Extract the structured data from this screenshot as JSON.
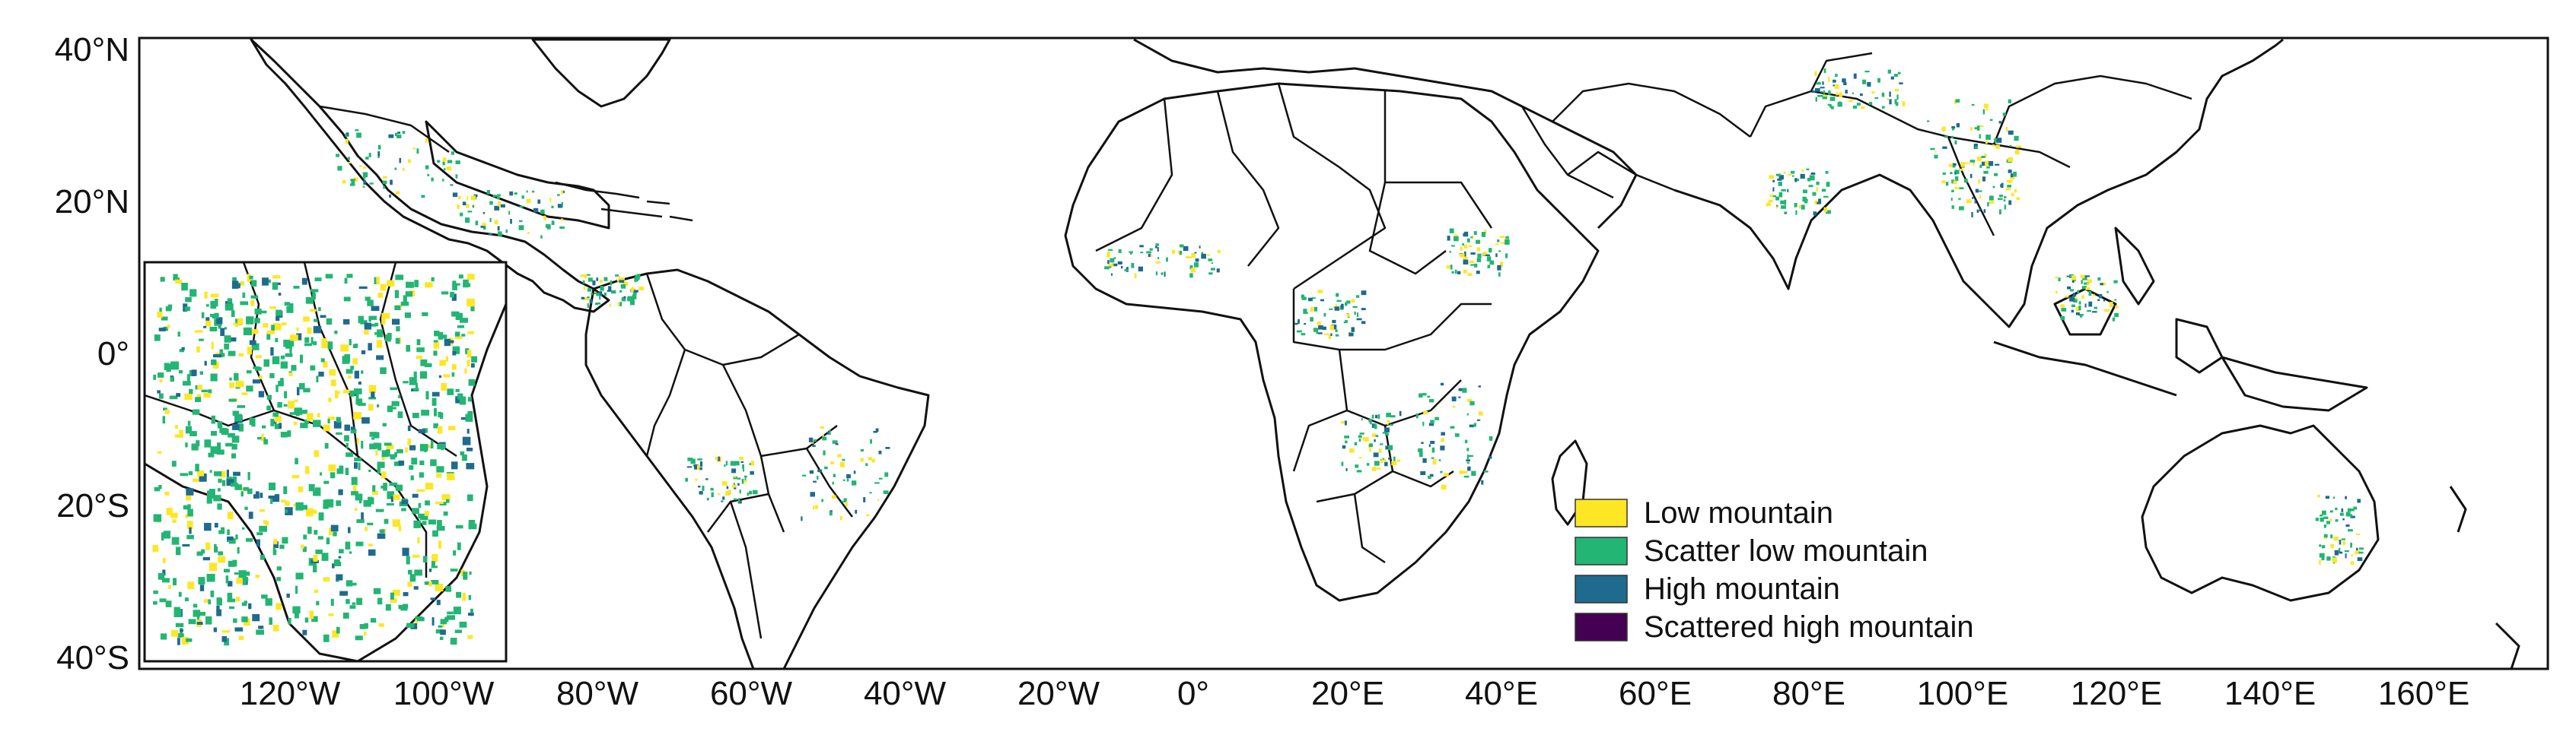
{
  "map": {
    "lat_labels": [
      "40°N",
      "20°N",
      "0°",
      "20°S",
      "40°S"
    ],
    "lon_labels": [
      "120°W",
      "100°W",
      "80°W",
      "60°W",
      "40°W",
      "20°W",
      "0°",
      "20°E",
      "40°E",
      "60°E",
      "80°E",
      "100°E",
      "120°E",
      "140°E",
      "160°E"
    ]
  },
  "legend": {
    "items": [
      {
        "label": "Low mountain",
        "color": "#fde725"
      },
      {
        "label": "Scatter low mountain",
        "color": "#22b573"
      },
      {
        "label": "High mountain",
        "color": "#1f6a8f"
      },
      {
        "label": "Scattered high mountain",
        "color": "#440154"
      }
    ]
  },
  "colors": {
    "low_mountain": "#fde725",
    "scatter_low_mountain": "#22b573",
    "high_mountain": "#1f6a8f",
    "scattered_high_mountain": "#440154",
    "coastline": "#111111"
  }
}
